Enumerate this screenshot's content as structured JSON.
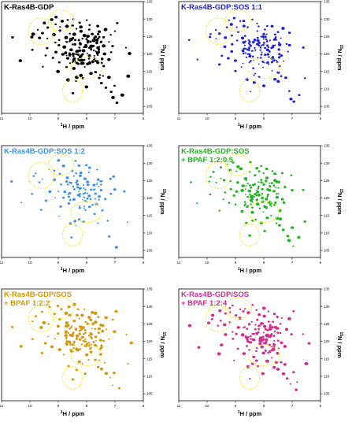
{
  "chart_data": [
    {
      "type": "scatter",
      "title_lines": [
        "K-Ras4B-GDP"
      ],
      "color": "#000000",
      "xlabel_prefix": "1",
      "xlabel_text": "H / ppm",
      "ylabel_prefix": "15",
      "ylabel_text": "N / ppm",
      "xlim": [
        11,
        6
      ],
      "ylim": [
        135,
        103
      ],
      "x_ticks": [
        11,
        10,
        9,
        8,
        7,
        6
      ],
      "y_ticks": [
        105,
        110,
        115,
        120,
        125,
        130,
        135
      ],
      "density": 1.0,
      "peak_size": 1.0
    },
    {
      "type": "scatter",
      "title_lines": [
        "K-Ras4B-GDP:SOS 1:1"
      ],
      "color": "#1f1fd6",
      "xlabel_prefix": "1",
      "xlabel_text": "H / ppm",
      "ylabel_prefix": "15",
      "ylabel_text": "N / ppm",
      "xlim": [
        11,
        6
      ],
      "ylim": [
        135,
        103
      ],
      "x_ticks": [
        11,
        10,
        9,
        8,
        7,
        6
      ],
      "y_ticks": [
        105,
        110,
        115,
        120,
        125,
        130,
        135
      ],
      "density": 0.8,
      "peak_size": 0.85
    },
    {
      "type": "scatter",
      "title_lines": [
        "K-Ras4B-GDP:SOS 1:2"
      ],
      "color": "#3d8fe8",
      "xlabel_prefix": "1",
      "xlabel_text": "H / ppm",
      "ylabel_prefix": "15",
      "ylabel_text": "N / ppm",
      "xlim": [
        11,
        6
      ],
      "ylim": [
        135,
        103
      ],
      "x_ticks": [
        11,
        10,
        9,
        8,
        7,
        6
      ],
      "y_ticks": [
        105,
        110,
        115,
        120,
        125,
        130,
        135
      ],
      "density": 0.55,
      "peak_size": 0.8
    },
    {
      "type": "scatter",
      "title_lines": [
        "K-Ras4B-GDP:SOS",
        "+ BPAF 1:2:0.5"
      ],
      "color": "#21b521",
      "xlabel_prefix": "1",
      "xlabel_text": "H / ppm",
      "ylabel_prefix": "15",
      "ylabel_text": "N / ppm",
      "xlim": [
        11,
        6
      ],
      "ylim": [
        135,
        103
      ],
      "x_ticks": [
        11,
        10,
        9,
        8,
        7,
        6
      ],
      "y_ticks": [
        105,
        110,
        115,
        120,
        125,
        130,
        135
      ],
      "density": 0.75,
      "peak_size": 0.9
    },
    {
      "type": "scatter",
      "title_lines": [
        "K-Ras4B-GDP/SOS",
        "+ BPAF 1:2:2"
      ],
      "color": "#d4980e",
      "xlabel_prefix": "1",
      "xlabel_text": "H / ppm",
      "ylabel_prefix": "15",
      "ylabel_text": "N / ppm",
      "xlim": [
        11,
        6
      ],
      "ylim": [
        135,
        103
      ],
      "x_ticks": [
        11,
        10,
        9,
        8,
        7,
        6
      ],
      "y_ticks": [
        105,
        110,
        115,
        120,
        125,
        130,
        135
      ],
      "density": 0.85,
      "peak_size": 0.95
    },
    {
      "type": "scatter",
      "title_lines": [
        "K-Ras4B-GDP/SOS",
        "+ BPAF 1:2:4"
      ],
      "color": "#d42c8e",
      "xlabel_prefix": "1",
      "xlabel_text": "H / ppm",
      "ylabel_prefix": "15",
      "ylabel_text": "N / ppm",
      "xlim": [
        11,
        6
      ],
      "ylim": [
        135,
        103
      ],
      "x_ticks": [
        11,
        10,
        9,
        8,
        7,
        6
      ],
      "y_ticks": [
        105,
        110,
        115,
        120,
        125,
        130,
        135
      ],
      "density": 0.85,
      "peak_size": 0.95
    }
  ],
  "highlight_regions": [
    {
      "cx": 8.5,
      "cy": 109.5,
      "rx": 0.35,
      "ry": 3.2
    },
    {
      "cx": 8.0,
      "cy": 116.0,
      "rx": 0.55,
      "ry": 3.0
    },
    {
      "cx": 9.6,
      "cy": 126.5,
      "rx": 0.45,
      "ry": 3.8
    },
    {
      "cx": 8.9,
      "cy": 129.5,
      "rx": 0.45,
      "ry": 3.0
    }
  ],
  "peaks": [
    [
      6.9,
      106.2
    ],
    [
      7.1,
      107.5
    ],
    [
      7.3,
      110.6
    ],
    [
      7.15,
      109.4
    ],
    [
      7.45,
      111.9
    ],
    [
      7.0,
      111.2
    ],
    [
      7.6,
      112.8
    ],
    [
      6.8,
      108.4
    ],
    [
      7.2,
      113.4
    ],
    [
      7.7,
      115.1
    ],
    [
      7.55,
      114.3
    ],
    [
      7.9,
      114.6
    ],
    [
      8.15,
      113.2
    ],
    [
      8.35,
      112.0
    ],
    [
      8.25,
      114.1
    ],
    [
      8.6,
      112.9
    ],
    [
      8.4,
      115.6
    ],
    [
      8.75,
      116.2
    ],
    [
      8.05,
      116.4
    ],
    [
      7.85,
      117.1
    ],
    [
      7.65,
      117.8
    ],
    [
      7.45,
      116.6
    ],
    [
      7.25,
      118.3
    ],
    [
      8.55,
      117.5
    ],
    [
      8.95,
      117.9
    ],
    [
      9.2,
      118.6
    ],
    [
      9.45,
      119.3
    ],
    [
      9.1,
      120.4
    ],
    [
      8.85,
      119.8
    ],
    [
      8.65,
      118.9
    ],
    [
      8.45,
      119.5
    ],
    [
      8.25,
      118.1
    ],
    [
      8.05,
      118.7
    ],
    [
      7.95,
      119.6
    ],
    [
      7.75,
      119.1
    ],
    [
      7.55,
      120.2
    ],
    [
      7.35,
      119.8
    ],
    [
      7.15,
      120.9
    ],
    [
      7.85,
      120.8
    ],
    [
      8.15,
      121.1
    ],
    [
      8.35,
      120.6
    ],
    [
      8.55,
      121.3
    ],
    [
      8.75,
      121.8
    ],
    [
      8.95,
      122.2
    ],
    [
      9.15,
      122.9
    ],
    [
      9.35,
      121.7
    ],
    [
      8.45,
      122.4
    ],
    [
      8.25,
      122.8
    ],
    [
      8.05,
      122.3
    ],
    [
      7.85,
      122.1
    ],
    [
      7.65,
      121.6
    ],
    [
      7.45,
      122.6
    ],
    [
      7.25,
      123.1
    ],
    [
      7.05,
      122.4
    ],
    [
      7.75,
      123.5
    ],
    [
      7.95,
      123.9
    ],
    [
      8.15,
      124.2
    ],
    [
      8.35,
      123.6
    ],
    [
      8.55,
      124.0
    ],
    [
      8.75,
      124.6
    ],
    [
      8.95,
      124.1
    ],
    [
      9.15,
      125.2
    ],
    [
      9.35,
      124.8
    ],
    [
      9.55,
      125.6
    ],
    [
      8.65,
      125.5
    ],
    [
      8.45,
      125.9
    ],
    [
      8.25,
      126.3
    ],
    [
      8.05,
      125.4
    ],
    [
      7.85,
      126.0
    ],
    [
      7.65,
      125.3
    ],
    [
      7.45,
      124.7
    ],
    [
      7.55,
      126.6
    ],
    [
      7.95,
      127.1
    ],
    [
      8.15,
      127.6
    ],
    [
      8.35,
      127.2
    ],
    [
      8.55,
      127.8
    ],
    [
      8.75,
      128.3
    ],
    [
      8.95,
      127.4
    ],
    [
      9.15,
      128.1
    ],
    [
      9.35,
      127.9
    ],
    [
      9.55,
      128.7
    ],
    [
      9.75,
      127.2
    ],
    [
      9.85,
      126.0
    ],
    [
      9.95,
      125.1
    ],
    [
      9.65,
      124.3
    ],
    [
      8.85,
      129.1
    ],
    [
      8.65,
      129.6
    ],
    [
      8.45,
      130.2
    ],
    [
      9.05,
      130.4
    ],
    [
      9.25,
      129.8
    ],
    [
      8.25,
      128.9
    ],
    [
      8.05,
      129.4
    ],
    [
      7.85,
      128.4
    ],
    [
      7.65,
      127.9
    ],
    [
      7.35,
      127.0
    ],
    [
      7.15,
      125.8
    ],
    [
      10.35,
      118.4
    ],
    [
      10.6,
      124.4
    ],
    [
      9.9,
      121.0
    ],
    [
      6.5,
      113.4
    ],
    [
      6.45,
      119.8
    ],
    [
      6.65,
      122.1
    ],
    [
      7.05,
      126.2
    ],
    [
      6.95,
      128.9
    ],
    [
      8.0,
      110.8
    ],
    [
      8.5,
      108.9
    ],
    [
      9.0,
      114.8
    ],
    [
      9.6,
      116.7
    ],
    [
      7.6,
      123.9
    ],
    [
      8.3,
      117.3
    ],
    [
      8.7,
      123.2
    ],
    [
      8.1,
      120.0
    ],
    [
      7.9,
      121.4
    ],
    [
      8.6,
      120.1
    ],
    [
      8.3,
      121.9
    ],
    [
      8.0,
      124.9
    ],
    [
      8.9,
      126.6
    ],
    [
      7.7,
      118.6
    ],
    [
      8.4,
      113.6
    ],
    [
      7.4,
      113.8
    ]
  ]
}
